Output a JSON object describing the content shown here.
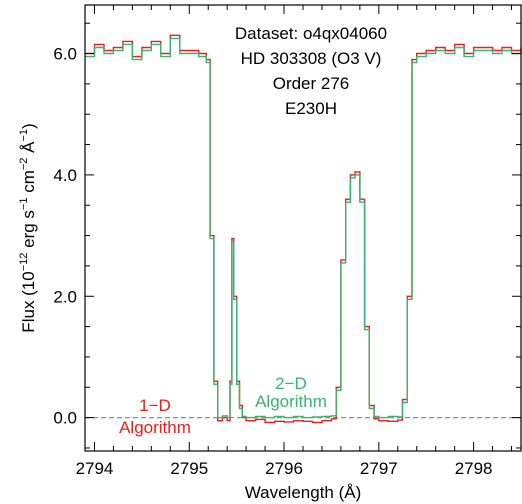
{
  "chart_data": {
    "type": "line",
    "title": "",
    "info_lines": [
      "Dataset: o4qx04060",
      "HD 303308 (O3 V)",
      "Order 276",
      "E230H"
    ],
    "xlabel": "Wavelength (Å)",
    "ylabel_parts": {
      "prefix": "Flux (10",
      "exp1": "−12",
      "mid1": " erg s",
      "exp2": "−1",
      "mid2": " cm",
      "exp3": "−2",
      "mid3": " Å",
      "exp4": "−1",
      "suffix": ")"
    },
    "xlim": [
      2793.9,
      2798.5
    ],
    "ylim": [
      -0.55,
      6.8
    ],
    "xticks": [
      2794,
      2795,
      2796,
      2797,
      2798
    ],
    "xtick_labels": [
      "2794",
      "2795",
      "2796",
      "2797",
      "2798"
    ],
    "yticks": [
      0.0,
      2.0,
      4.0,
      6.0
    ],
    "ytick_labels": [
      "0.0",
      "2.0",
      "4.0",
      "6.0"
    ],
    "grid": false,
    "baseline": {
      "y": 0.0,
      "style": "dashed",
      "color": "#5b9bd5"
    },
    "series": [
      {
        "name": "1-D Algorithm",
        "label_lines": [
          "1−D",
          "Algorithm"
        ],
        "color": "#e8201c",
        "x": [
          2793.9,
          2794.0,
          2794.1,
          2794.2,
          2794.3,
          2794.4,
          2794.5,
          2794.6,
          2794.7,
          2794.8,
          2794.9,
          2795.0,
          2795.1,
          2795.18,
          2795.22,
          2795.26,
          2795.3,
          2795.35,
          2795.4,
          2795.43,
          2795.45,
          2795.47,
          2795.5,
          2795.53,
          2795.56,
          2795.6,
          2795.7,
          2795.8,
          2795.9,
          2796.0,
          2796.1,
          2796.2,
          2796.3,
          2796.4,
          2796.5,
          2796.55,
          2796.6,
          2796.65,
          2796.7,
          2796.75,
          2796.8,
          2796.85,
          2796.9,
          2796.95,
          2797.0,
          2797.1,
          2797.2,
          2797.25,
          2797.3,
          2797.35,
          2797.4,
          2797.5,
          2797.6,
          2797.7,
          2797.8,
          2797.9,
          2798.0,
          2798.1,
          2798.2,
          2798.3,
          2798.4,
          2798.5
        ],
        "y": [
          6.0,
          6.15,
          6.05,
          6.1,
          6.2,
          5.95,
          6.1,
          6.2,
          6.0,
          6.3,
          6.05,
          6.05,
          6.0,
          5.9,
          3.0,
          0.6,
          -0.05,
          0.0,
          -0.05,
          0.6,
          2.95,
          2.0,
          0.6,
          0.2,
          0.0,
          -0.05,
          -0.03,
          -0.08,
          -0.06,
          -0.07,
          -0.05,
          -0.06,
          -0.08,
          -0.05,
          -0.02,
          0.5,
          2.6,
          3.6,
          4.0,
          4.05,
          3.6,
          1.5,
          0.2,
          -0.02,
          -0.05,
          -0.06,
          -0.04,
          0.3,
          2.0,
          5.9,
          6.0,
          6.05,
          6.1,
          6.05,
          6.15,
          6.0,
          6.1,
          6.1,
          6.05,
          6.1,
          6.05,
          6.1
        ]
      },
      {
        "name": "2-D Algorithm",
        "label_lines": [
          "2−D",
          "Algorithm"
        ],
        "color": "#3cb371",
        "x": [
          2793.9,
          2794.0,
          2794.1,
          2794.2,
          2794.3,
          2794.4,
          2794.5,
          2794.6,
          2794.7,
          2794.8,
          2794.9,
          2795.0,
          2795.1,
          2795.18,
          2795.22,
          2795.26,
          2795.3,
          2795.35,
          2795.4,
          2795.43,
          2795.45,
          2795.47,
          2795.5,
          2795.53,
          2795.56,
          2795.6,
          2795.7,
          2795.8,
          2795.9,
          2796.0,
          2796.1,
          2796.2,
          2796.3,
          2796.4,
          2796.5,
          2796.55,
          2796.6,
          2796.65,
          2796.7,
          2796.75,
          2796.8,
          2796.85,
          2796.9,
          2796.95,
          2797.0,
          2797.1,
          2797.2,
          2797.25,
          2797.3,
          2797.35,
          2797.4,
          2797.5,
          2797.6,
          2797.7,
          2797.8,
          2797.9,
          2798.0,
          2798.1,
          2798.2,
          2798.3,
          2798.4,
          2798.5
        ],
        "y": [
          5.95,
          6.1,
          6.0,
          6.05,
          6.15,
          5.9,
          6.05,
          6.15,
          5.95,
          6.25,
          6.0,
          6.0,
          5.95,
          5.85,
          2.95,
          0.55,
          0.0,
          0.03,
          0.0,
          0.55,
          2.9,
          1.95,
          0.55,
          0.15,
          0.02,
          0.0,
          0.02,
          0.0,
          0.02,
          0.0,
          0.02,
          0.0,
          0.01,
          0.02,
          0.03,
          0.45,
          2.55,
          3.55,
          3.95,
          4.0,
          3.55,
          1.45,
          0.15,
          0.02,
          0.0,
          0.02,
          0.01,
          0.25,
          1.95,
          5.85,
          5.95,
          6.0,
          6.05,
          6.0,
          6.1,
          5.95,
          6.05,
          6.05,
          6.0,
          6.05,
          6.0,
          6.05
        ]
      }
    ]
  }
}
